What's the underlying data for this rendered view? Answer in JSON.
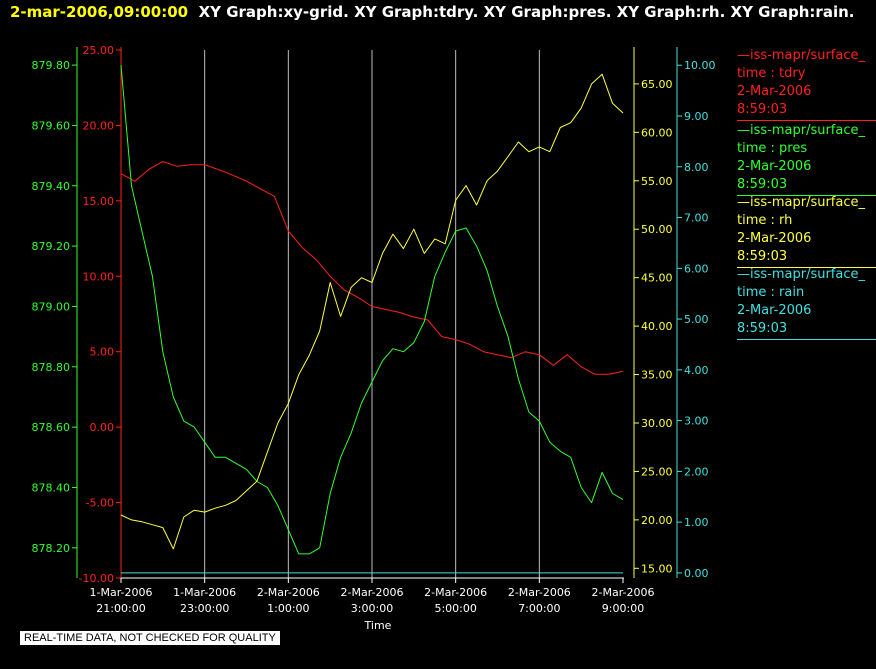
{
  "header": {
    "date": "2-mar-2006,09:00:00",
    "graphs": "XY Graph:xy-grid.  XY Graph:tdry.  XY Graph:pres.  XY Graph:rh.  XY Graph:rain."
  },
  "footer": {
    "quality_note": "REAL-TIME DATA, NOT CHECKED FOR QUALITY"
  },
  "legend": [
    {
      "source": "—iss-mapr/surface_",
      "field": "time : tdry",
      "date": "2-Mar-2006",
      "time": "8:59:03",
      "color": "#ff2020"
    },
    {
      "source": "—iss-mapr/surface_",
      "field": "time : pres",
      "date": "2-Mar-2006",
      "time": "8:59:03",
      "color": "#30ff30"
    },
    {
      "source": "—iss-mapr/surface_",
      "field": "time : rh",
      "date": "2-Mar-2006",
      "time": "8:59:03",
      "color": "#ffff40"
    },
    {
      "source": "—iss-mapr/surface_",
      "field": "time : rain",
      "date": "2-Mar-2006",
      "time": "8:59:03",
      "color": "#40e0e0"
    }
  ],
  "chart_data": {
    "type": "line",
    "xlabel": "Time",
    "x_ticks": [
      [
        "1-Mar-2006",
        "21:00:00"
      ],
      [
        "1-Mar-2006",
        "23:00:00"
      ],
      [
        "2-Mar-2006",
        "1:00:00"
      ],
      [
        "2-Mar-2006",
        "3:00:00"
      ],
      [
        "2-Mar-2006",
        "5:00:00"
      ],
      [
        "2-Mar-2006",
        "7:00:00"
      ],
      [
        "2-Mar-2006",
        "9:00:00"
      ]
    ],
    "xlim": [
      "2006-03-01 21:00",
      "2006-03-02 09:00"
    ],
    "grid": "vertical",
    "axes": [
      {
        "side": "left",
        "color": "#30ff30",
        "ticks": [
          "879.80",
          "879.60",
          "879.40",
          "879.20",
          "879.00",
          "878.80",
          "878.60",
          "878.40",
          "878.20"
        ],
        "ylim": [
          878.1,
          879.85
        ]
      },
      {
        "side": "left",
        "color": "#ff2020",
        "ticks": [
          "25.00",
          "20.00",
          "15.00",
          "10.00",
          "5.00",
          "0.00",
          "-5.00",
          "-10.00"
        ],
        "ylim": [
          -10,
          25
        ]
      },
      {
        "side": "right",
        "color": "#ffff40",
        "ticks": [
          "65.00",
          "60.00",
          "55.00",
          "50.00",
          "45.00",
          "40.00",
          "35.00",
          "30.00",
          "25.00",
          "20.00",
          "15.00"
        ],
        "ylim": [
          14,
          68.5
        ]
      },
      {
        "side": "right",
        "color": "#40e0e0",
        "ticks": [
          "10.00",
          "9.00",
          "8.00",
          "7.00",
          "6.00",
          "5.00",
          "4.00",
          "3.00",
          "2.00",
          "1.00",
          "0.00"
        ],
        "ylim": [
          -0.1,
          10.3
        ]
      }
    ],
    "series": [
      {
        "field": "tdry",
        "color": "#ff2020",
        "axis": 1,
        "x": [
          "2006-03-01 21:00",
          "2006-03-01 21:20",
          "2006-03-01 21:40",
          "2006-03-01 22:00",
          "2006-03-01 22:20",
          "2006-03-01 22:40",
          "2006-03-01 23:00",
          "2006-03-01 23:30",
          "2006-03-02 00:00",
          "2006-03-02 00:20",
          "2006-03-02 00:40",
          "2006-03-02 01:00",
          "2006-03-02 01:20",
          "2006-03-02 01:40",
          "2006-03-02 02:00",
          "2006-03-02 02:20",
          "2006-03-02 02:40",
          "2006-03-02 03:00",
          "2006-03-02 03:20",
          "2006-03-02 03:40",
          "2006-03-02 04:00",
          "2006-03-02 04:20",
          "2006-03-02 04:40",
          "2006-03-02 05:00",
          "2006-03-02 05:20",
          "2006-03-02 05:40",
          "2006-03-02 06:00",
          "2006-03-02 06:20",
          "2006-03-02 06:40",
          "2006-03-02 07:00",
          "2006-03-02 07:20",
          "2006-03-02 07:40",
          "2006-03-02 08:00",
          "2006-03-02 08:20",
          "2006-03-02 08:40",
          "2006-03-02 09:00"
        ],
        "y": [
          16.8,
          16.3,
          17.1,
          17.6,
          17.3,
          17.4,
          17.4,
          16.9,
          16.3,
          15.8,
          15.3,
          13.0,
          11.9,
          11.1,
          10.0,
          9.1,
          8.6,
          8.0,
          7.8,
          7.6,
          7.3,
          7.1,
          6.0,
          5.8,
          5.5,
          5.0,
          4.8,
          4.6,
          5.0,
          4.8,
          4.1,
          4.8,
          4.0,
          3.5,
          3.5,
          3.7
        ]
      },
      {
        "field": "pres",
        "color": "#30ff30",
        "axis": 0,
        "x": [
          "2006-03-01 21:00",
          "2006-03-01 21:15",
          "2006-03-01 21:30",
          "2006-03-01 21:45",
          "2006-03-01 22:00",
          "2006-03-01 22:15",
          "2006-03-01 22:30",
          "2006-03-01 22:45",
          "2006-03-01 23:00",
          "2006-03-01 23:15",
          "2006-03-01 23:30",
          "2006-03-01 23:45",
          "2006-03-02 00:00",
          "2006-03-02 00:15",
          "2006-03-02 00:30",
          "2006-03-02 00:45",
          "2006-03-02 01:00",
          "2006-03-02 01:15",
          "2006-03-02 01:30",
          "2006-03-02 01:45",
          "2006-03-02 02:00",
          "2006-03-02 02:15",
          "2006-03-02 02:30",
          "2006-03-02 02:45",
          "2006-03-02 03:00",
          "2006-03-02 03:15",
          "2006-03-02 03:30",
          "2006-03-02 03:45",
          "2006-03-02 04:00",
          "2006-03-02 04:15",
          "2006-03-02 04:30",
          "2006-03-02 04:45",
          "2006-03-02 05:00",
          "2006-03-02 05:15",
          "2006-03-02 05:30",
          "2006-03-02 05:45",
          "2006-03-02 06:00",
          "2006-03-02 06:15",
          "2006-03-02 06:30",
          "2006-03-02 06:45",
          "2006-03-02 07:00",
          "2006-03-02 07:15",
          "2006-03-02 07:30",
          "2006-03-02 07:45",
          "2006-03-02 08:00",
          "2006-03-02 08:15",
          "2006-03-02 08:30",
          "2006-03-02 08:45",
          "2006-03-02 09:00"
        ],
        "y": [
          879.8,
          879.4,
          879.25,
          879.1,
          878.85,
          878.7,
          878.62,
          878.6,
          878.55,
          878.5,
          878.5,
          878.48,
          878.46,
          878.42,
          878.4,
          878.34,
          878.26,
          878.18,
          878.18,
          878.2,
          878.38,
          878.5,
          878.58,
          878.68,
          878.75,
          878.82,
          878.86,
          878.85,
          878.88,
          878.95,
          879.1,
          879.18,
          879.25,
          879.26,
          879.2,
          879.12,
          879.0,
          878.9,
          878.76,
          878.65,
          878.62,
          878.55,
          878.52,
          878.5,
          878.4,
          878.35,
          878.45,
          878.38,
          878.36
        ]
      },
      {
        "field": "rh",
        "color": "#ffff40",
        "axis": 2,
        "x": [
          "2006-03-01 21:00",
          "2006-03-01 21:15",
          "2006-03-01 21:30",
          "2006-03-01 21:45",
          "2006-03-01 22:00",
          "2006-03-01 22:15",
          "2006-03-01 22:30",
          "2006-03-01 22:45",
          "2006-03-01 23:00",
          "2006-03-01 23:15",
          "2006-03-01 23:30",
          "2006-03-01 23:45",
          "2006-03-02 00:00",
          "2006-03-02 00:15",
          "2006-03-02 00:30",
          "2006-03-02 00:45",
          "2006-03-02 01:00",
          "2006-03-02 01:15",
          "2006-03-02 01:30",
          "2006-03-02 01:45",
          "2006-03-02 02:00",
          "2006-03-02 02:15",
          "2006-03-02 02:30",
          "2006-03-02 02:45",
          "2006-03-02 03:00",
          "2006-03-02 03:15",
          "2006-03-02 03:30",
          "2006-03-02 03:45",
          "2006-03-02 04:00",
          "2006-03-02 04:15",
          "2006-03-02 04:30",
          "2006-03-02 04:45",
          "2006-03-02 05:00",
          "2006-03-02 05:15",
          "2006-03-02 05:30",
          "2006-03-02 05:45",
          "2006-03-02 06:00",
          "2006-03-02 06:15",
          "2006-03-02 06:30",
          "2006-03-02 06:45",
          "2006-03-02 07:00",
          "2006-03-02 07:15",
          "2006-03-02 07:30",
          "2006-03-02 07:45",
          "2006-03-02 08:00",
          "2006-03-02 08:15",
          "2006-03-02 08:30",
          "2006-03-02 08:45",
          "2006-03-02 09:00"
        ],
        "y": [
          20.5,
          20.0,
          19.8,
          19.5,
          19.2,
          17.0,
          20.3,
          21.0,
          20.8,
          21.2,
          21.5,
          22.0,
          23.0,
          24.0,
          27.0,
          30.0,
          32.0,
          35.0,
          37.0,
          39.5,
          44.5,
          41.0,
          44.0,
          45.0,
          44.5,
          47.5,
          49.5,
          48.0,
          50.0,
          47.5,
          49.0,
          48.5,
          53.0,
          54.5,
          52.5,
          55.0,
          56.0,
          57.5,
          59.0,
          58.0,
          58.5,
          58.0,
          60.5,
          61.0,
          62.5,
          65.0,
          66.0,
          63.0,
          62.0
        ]
      },
      {
        "field": "rain",
        "color": "#40e0e0",
        "axis": 3,
        "x": [
          "2006-03-01 21:00",
          "2006-03-02 09:00"
        ],
        "y": [
          0.0,
          0.0
        ]
      }
    ]
  }
}
